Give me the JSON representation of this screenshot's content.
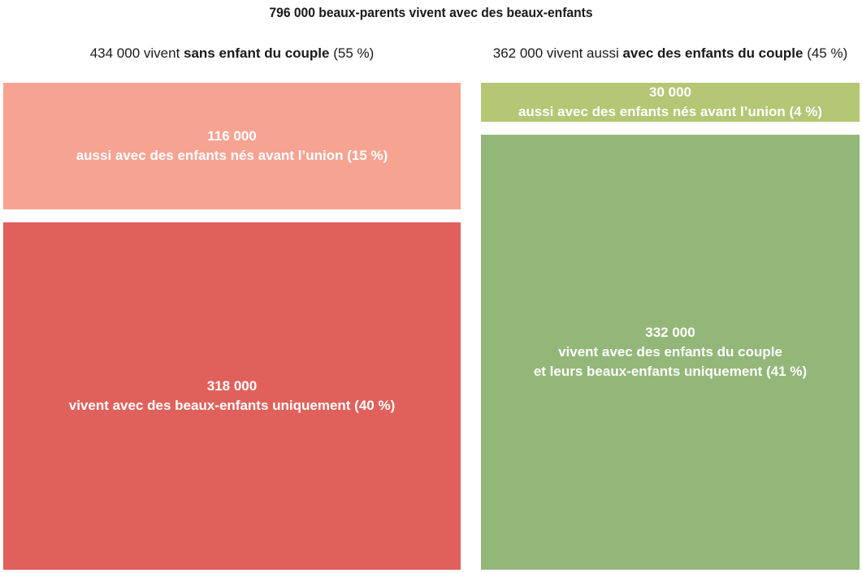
{
  "chart_data": {
    "type": "treemap",
    "title": "796 000 beaux-parents vivent avec des beaux-enfants",
    "total": 796000,
    "groups": [
      {
        "id": "left",
        "header_pre": "434 000 vivent ",
        "header_bold": "sans enfant du couple",
        "header_post": " (55 %)",
        "value": 434000,
        "percent": 55,
        "cells": [
          {
            "value_label": "116 000",
            "lines": [
              "aussi avec des enfants nés avant l’union (15 %)"
            ],
            "value": 116000,
            "percent": 15,
            "color": "#f7a391"
          },
          {
            "value_label": "318 000",
            "lines": [
              "vivent avec des beaux-enfants uniquement (40 %)"
            ],
            "value": 318000,
            "percent": 40,
            "color": "#e0615b"
          }
        ]
      },
      {
        "id": "right",
        "header_pre": "362 000 vivent aussi ",
        "header_bold": "avec des enfants du couple",
        "header_post": " (45 %)",
        "value": 362000,
        "percent": 45,
        "cells": [
          {
            "value_label": "30 000",
            "lines": [
              "aussi avec des enfants nés avant l’union (4 %)"
            ],
            "value": 30000,
            "percent": 4,
            "color": "#b3c774"
          },
          {
            "value_label": "332 000",
            "lines": [
              "vivent avec des enfants du couple",
              "et leurs beaux-enfants uniquement (41 %)"
            ],
            "value": 332000,
            "percent": 41,
            "color": "#93b778"
          }
        ]
      }
    ]
  }
}
